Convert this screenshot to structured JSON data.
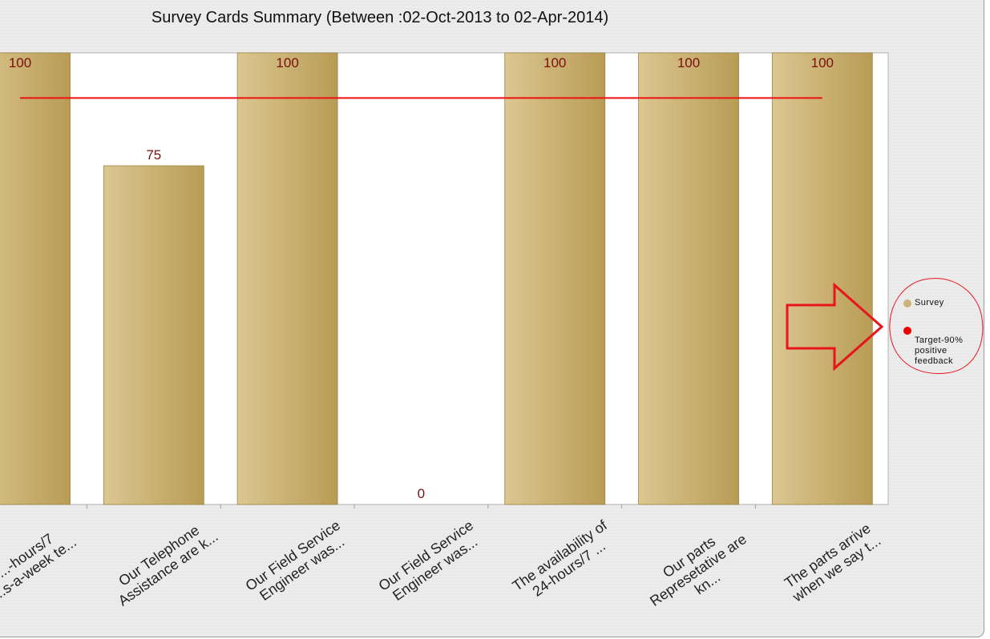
{
  "chart_data": {
    "type": "bar",
    "title": "Survey Cards Summary (Between :02-Oct-2013 to 02-Apr-2014)",
    "categories": [
      "...-hours/7\n...s-a-week te...",
      "Our Telephone\nAssistance are k...",
      "Our Field Service\nEngineer was...",
      "Our Field Service\nEngineer was...",
      "The availability of\n24-hours/7 ...",
      "Our parts\nRepresetative are\nkn...",
      "The parts arrive\nwhen we say t..."
    ],
    "series": [
      {
        "name": "Survey",
        "values": [
          100,
          75,
          100,
          0,
          100,
          100,
          100
        ]
      },
      {
        "name": "Target-90% positive feedback",
        "values": [
          90,
          90,
          90,
          90,
          90,
          90,
          90
        ]
      }
    ],
    "data_labels": [
      "100",
      "75",
      "100",
      "0",
      "100",
      "100",
      "100"
    ],
    "ylim": [
      0,
      100
    ],
    "grid": false,
    "legend_position": "right",
    "colors": {
      "bar_light": "#dcc791",
      "bar_dark": "#b89c55",
      "bar_border": "#9c8440",
      "target_line": "#ee1111",
      "label": "#7a0f0f",
      "legend_survey": "#ccb37a",
      "legend_target": "#ee0000",
      "annotation": "#e8141c"
    }
  },
  "legend": {
    "items": [
      {
        "label": "Survey"
      },
      {
        "label": "Target-90%\npositive\nfeedback"
      }
    ]
  },
  "annotation": {
    "shapes": [
      "right-arrow",
      "circle-around-legend"
    ]
  }
}
